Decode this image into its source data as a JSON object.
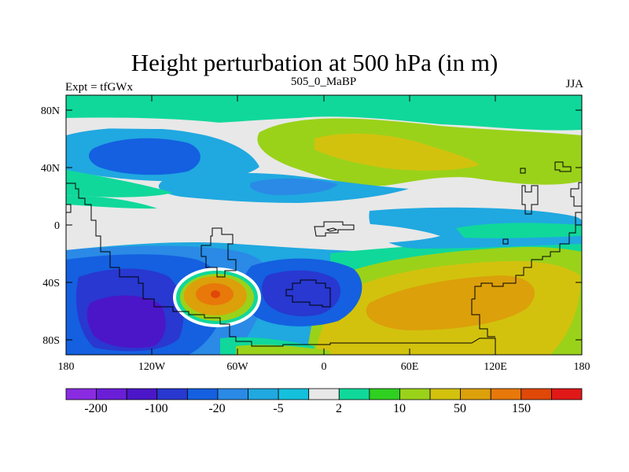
{
  "title": "Height perturbation at 500 hPa (in m)",
  "left_string": "Expt = tfGWx",
  "center_string": "505_0_MaBP",
  "right_string": "JJA",
  "y_ticks": [
    "80N",
    "40N",
    "0",
    "40S",
    "80S"
  ],
  "x_ticks": [
    "180",
    "120W",
    "60W",
    "0",
    "60E",
    "120E",
    "180"
  ],
  "colorbar": {
    "colors": [
      "#8a2be2",
      "#6a1ed8",
      "#4b16c8",
      "#2838d0",
      "#1460e0",
      "#2a8ae6",
      "#20a8e0",
      "#14c0dc",
      "#e8e8e8",
      "#10d89a",
      "#30d020",
      "#9ad21a",
      "#d2c20e",
      "#dca00a",
      "#e8780a",
      "#e04808",
      "#e01818"
    ],
    "labels": [
      "-200",
      "-100",
      "-20",
      "-5",
      "2",
      "10",
      "50",
      "150"
    ]
  },
  "chart_data": {
    "type": "heatmap",
    "title": "Height perturbation at 500 hPa (in m)",
    "variable": "500 hPa height perturbation",
    "units": "m",
    "season": "JJA",
    "experiment": "tfGWx",
    "case": "505_0_MaBP",
    "x_range": [
      -180,
      180
    ],
    "y_range": [
      -90,
      90
    ],
    "contour_levels": [
      -300,
      -200,
      -150,
      -100,
      -50,
      -20,
      -10,
      -5,
      -2,
      2,
      5,
      10,
      20,
      50,
      100,
      150,
      200,
      300
    ],
    "colorbar_labels": [
      "-200",
      "-100",
      "-20",
      "-5",
      "2",
      "10",
      "50",
      "150"
    ],
    "features": [
      {
        "name": "high_south_pacific",
        "lon": -75,
        "lat": -48,
        "value": 150
      },
      {
        "name": "low_south_pacific",
        "lon": -150,
        "lat": -60,
        "value": -150
      },
      {
        "name": "low_south_atlantic",
        "lon": -10,
        "lat": -40,
        "value": -100
      },
      {
        "name": "low_north_pacific",
        "lon": -145,
        "lat": 50,
        "value": -100
      },
      {
        "name": "high_southern_indian",
        "lon": 90,
        "lat": -60,
        "value": 50
      },
      {
        "name": "high_eurasia",
        "lon": 60,
        "lat": 55,
        "value": 20
      }
    ]
  }
}
